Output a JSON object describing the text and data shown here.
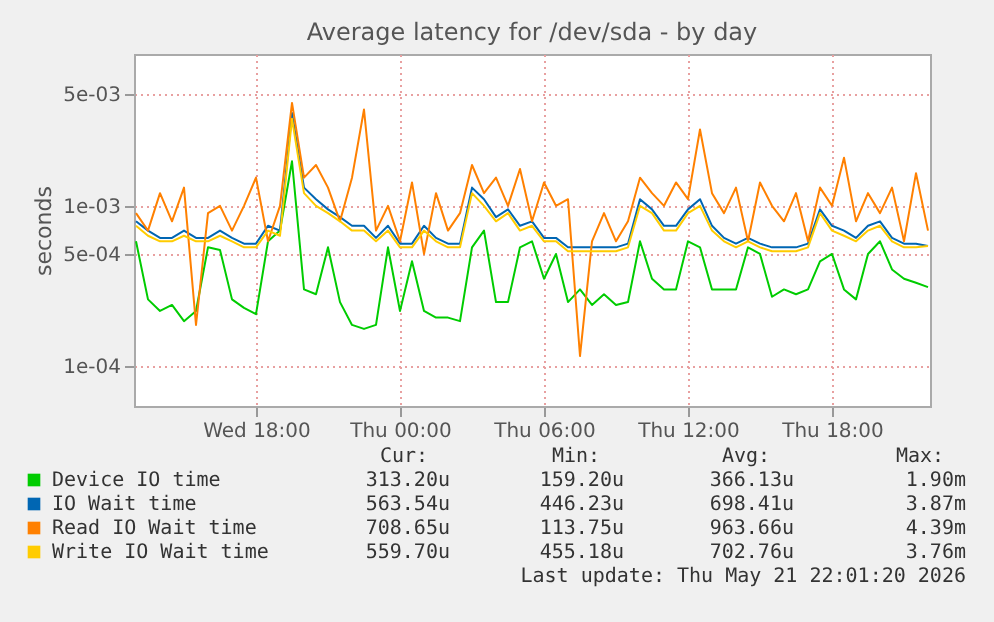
{
  "chart_data": {
    "type": "line",
    "title": "Average latency for /dev/sda - by day",
    "ylabel": "seconds",
    "x": [
      "2026-05-20T13:00",
      "2026-05-20T13:30",
      "2026-05-20T14:00",
      "2026-05-20T14:30",
      "2026-05-20T15:00",
      "2026-05-20T15:30",
      "2026-05-20T16:00",
      "2026-05-20T16:30",
      "2026-05-20T17:00",
      "2026-05-20T17:30",
      "2026-05-20T18:00",
      "2026-05-20T18:30",
      "2026-05-20T19:00",
      "2026-05-20T19:30",
      "2026-05-20T20:00",
      "2026-05-20T20:30",
      "2026-05-20T21:00",
      "2026-05-20T21:30",
      "2026-05-20T22:00",
      "2026-05-20T22:30",
      "2026-05-20T23:00",
      "2026-05-20T23:30",
      "2026-05-21T00:00",
      "2026-05-21T00:30",
      "2026-05-21T01:00",
      "2026-05-21T01:30",
      "2026-05-21T02:00",
      "2026-05-21T02:30",
      "2026-05-21T03:00",
      "2026-05-21T03:30",
      "2026-05-21T04:00",
      "2026-05-21T04:30",
      "2026-05-21T05:00",
      "2026-05-21T05:30",
      "2026-05-21T06:00",
      "2026-05-21T06:30",
      "2026-05-21T07:00",
      "2026-05-21T07:30",
      "2026-05-21T08:00",
      "2026-05-21T08:30",
      "2026-05-21T09:00",
      "2026-05-21T09:30",
      "2026-05-21T10:00",
      "2026-05-21T10:30",
      "2026-05-21T11:00",
      "2026-05-21T11:30",
      "2026-05-21T12:00",
      "2026-05-21T12:30",
      "2026-05-21T13:00",
      "2026-05-21T13:30",
      "2026-05-21T14:00",
      "2026-05-21T14:30",
      "2026-05-21T15:00",
      "2026-05-21T15:30",
      "2026-05-21T16:00",
      "2026-05-21T16:30",
      "2026-05-21T17:00",
      "2026-05-21T17:30",
      "2026-05-21T18:00",
      "2026-05-21T18:30",
      "2026-05-21T19:00",
      "2026-05-21T19:30",
      "2026-05-21T20:00",
      "2026-05-21T20:30",
      "2026-05-21T21:00",
      "2026-05-21T21:30",
      "2026-05-21T22:00"
    ],
    "series": [
      {
        "name": "Device IO time",
        "color": "#00cc00",
        "values": [
          0.0006,
          0.00026,
          0.00022,
          0.00024,
          0.00019,
          0.00022,
          0.00055,
          0.00053,
          0.00026,
          0.00023,
          0.00021,
          0.0006,
          0.0007,
          0.0019,
          0.0003,
          0.00028,
          0.00055,
          0.00025,
          0.00018,
          0.00017,
          0.00018,
          0.00055,
          0.00022,
          0.00045,
          0.00022,
          0.0002,
          0.0002,
          0.00019,
          0.00055,
          0.0007,
          0.00025,
          0.00025,
          0.00055,
          0.0006,
          0.00035,
          0.0005,
          0.00025,
          0.0003,
          0.00024,
          0.00028,
          0.00024,
          0.00025,
          0.0006,
          0.00035,
          0.0003,
          0.0003,
          0.0006,
          0.00055,
          0.0003,
          0.0003,
          0.0003,
          0.00055,
          0.0005,
          0.00027,
          0.0003,
          0.00028,
          0.0003,
          0.00045,
          0.0005,
          0.0003,
          0.00026,
          0.0005,
          0.0006,
          0.0004,
          0.00035,
          0.00033,
          0.00031
        ]
      },
      {
        "name": "IO Wait time",
        "color": "#0066b3",
        "values": [
          0.0008,
          0.0007,
          0.00063,
          0.00063,
          0.0007,
          0.00063,
          0.00063,
          0.0007,
          0.00063,
          0.00058,
          0.00058,
          0.00075,
          0.0007,
          0.0038,
          0.0013,
          0.0011,
          0.00095,
          0.00085,
          0.00075,
          0.00075,
          0.00063,
          0.00075,
          0.00058,
          0.00058,
          0.00075,
          0.00063,
          0.00058,
          0.00058,
          0.0013,
          0.0011,
          0.00085,
          0.00095,
          0.00075,
          0.0008,
          0.00063,
          0.00063,
          0.00055,
          0.00055,
          0.00055,
          0.00055,
          0.00055,
          0.00058,
          0.0011,
          0.00095,
          0.00075,
          0.00075,
          0.00095,
          0.0011,
          0.00075,
          0.00063,
          0.00058,
          0.00063,
          0.00058,
          0.00055,
          0.00055,
          0.00055,
          0.00058,
          0.00095,
          0.00075,
          0.0007,
          0.00063,
          0.00075,
          0.0008,
          0.00063,
          0.00058,
          0.00058,
          0.00056
        ]
      },
      {
        "name": "Read IO Wait time",
        "color": "#ff8000",
        "values": [
          0.0009,
          0.0007,
          0.0012,
          0.0008,
          0.0013,
          0.00018,
          0.0009,
          0.001,
          0.0007,
          0.001,
          0.0015,
          0.0006,
          0.001,
          0.0044,
          0.0015,
          0.0018,
          0.0013,
          0.0008,
          0.0015,
          0.004,
          0.0007,
          0.001,
          0.0006,
          0.0014,
          0.0005,
          0.0012,
          0.0007,
          0.0009,
          0.0018,
          0.0012,
          0.0015,
          0.001,
          0.0017,
          0.0008,
          0.0014,
          0.001,
          0.0011,
          0.000115,
          0.0006,
          0.0009,
          0.0006,
          0.0008,
          0.0015,
          0.0012,
          0.001,
          0.0014,
          0.0011,
          0.003,
          0.0012,
          0.0009,
          0.0013,
          0.0006,
          0.0014,
          0.001,
          0.0008,
          0.0012,
          0.0006,
          0.0013,
          0.001,
          0.002,
          0.0008,
          0.0012,
          0.0009,
          0.0013,
          0.0006,
          0.0016,
          0.0007
        ]
      },
      {
        "name": "Write IO Wait time",
        "color": "#ffcc00",
        "values": [
          0.00075,
          0.00065,
          0.0006,
          0.0006,
          0.00065,
          0.0006,
          0.0006,
          0.00065,
          0.0006,
          0.00055,
          0.00055,
          0.0007,
          0.00065,
          0.0035,
          0.0012,
          0.001,
          0.0009,
          0.0008,
          0.0007,
          0.0007,
          0.0006,
          0.0007,
          0.00055,
          0.00055,
          0.0007,
          0.0006,
          0.00055,
          0.00055,
          0.0012,
          0.001,
          0.0008,
          0.0009,
          0.0007,
          0.00075,
          0.0006,
          0.0006,
          0.00052,
          0.00052,
          0.00052,
          0.00052,
          0.00052,
          0.00055,
          0.001,
          0.0009,
          0.0007,
          0.0007,
          0.0009,
          0.001,
          0.0007,
          0.0006,
          0.00055,
          0.0006,
          0.00055,
          0.00052,
          0.00052,
          0.00052,
          0.00055,
          0.0009,
          0.0007,
          0.00065,
          0.0006,
          0.0007,
          0.00075,
          0.0006,
          0.00055,
          0.00055,
          0.00056
        ]
      }
    ],
    "xlim": [
      "2026-05-20T12:55",
      "2026-05-21T22:05"
    ],
    "xticks": [
      {
        "value": "2026-05-20T18:00",
        "label": "Wed 18:00"
      },
      {
        "value": "2026-05-21T00:00",
        "label": "Thu 00:00"
      },
      {
        "value": "2026-05-21T06:00",
        "label": "Thu 06:00"
      },
      {
        "value": "2026-05-21T12:00",
        "label": "Thu 12:00"
      },
      {
        "value": "2026-05-21T18:00",
        "label": "Thu 18:00"
      }
    ],
    "ylim": [
      5.6e-05,
      0.0089
    ],
    "yticks": [
      {
        "value": 0.0001,
        "label": "1e-04"
      },
      {
        "value": 0.0005,
        "label": "5e-04"
      },
      {
        "value": 0.001,
        "label": "1e-03"
      },
      {
        "value": 0.005,
        "label": "5e-03"
      }
    ],
    "log": true,
    "grid": true,
    "legend": "bottom",
    "marker": "none",
    "line_style": "solid",
    "annotations": [
      "Cur:",
      "Min:",
      "Avg:",
      "Max:",
      "313.20u",
      "159.20u",
      "366.13u",
      "1.90m",
      "563.54u",
      "446.23u",
      "698.41u",
      "3.87m",
      "708.65u",
      "113.75u",
      "963.66u",
      "4.39m",
      "559.70u",
      "455.18u",
      "702.76u",
      "3.76m",
      "Last update: Thu May 21 22:01:20 2026"
    ]
  }
}
